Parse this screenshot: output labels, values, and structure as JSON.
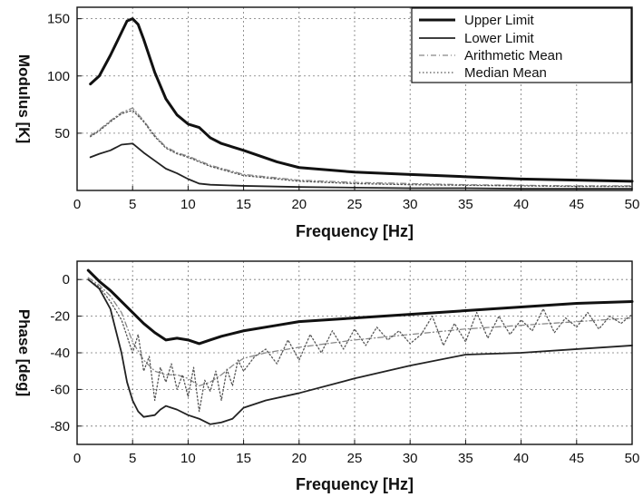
{
  "chart_data": [
    {
      "type": "line",
      "xlabel": "Frequency [Hz]",
      "ylabel": "Modulus [K]",
      "xlim": [
        0,
        50
      ],
      "ylim": [
        0,
        160
      ],
      "xticks": [
        "0",
        "5",
        "10",
        "15",
        "20",
        "25",
        "30",
        "35",
        "40",
        "45",
        "50"
      ],
      "yticks": [
        "50",
        "100",
        "150"
      ],
      "ytick_values": [
        50,
        100,
        150
      ],
      "grid": true,
      "legend_position": "top-right",
      "legend": [
        "Upper Limit",
        "Lower Limit",
        "Arithmetic Mean",
        "Median Mean"
      ],
      "series": [
        {
          "name": "Upper Limit",
          "style": "solid-thick",
          "color": "#111111",
          "x": [
            1.2,
            2,
            3,
            4,
            4.5,
            5,
            5.5,
            6,
            7,
            8,
            9,
            10,
            11,
            12,
            13,
            15,
            18,
            20,
            25,
            30,
            35,
            40,
            45,
            50
          ],
          "y": [
            93,
            100,
            118,
            138,
            148,
            150,
            145,
            132,
            103,
            80,
            66,
            58,
            55,
            46,
            41,
            35,
            25,
            20,
            16,
            14,
            12,
            10,
            9,
            8
          ]
        },
        {
          "name": "Lower Limit",
          "style": "solid",
          "color": "#222222",
          "x": [
            1.2,
            2,
            3,
            4,
            5,
            6,
            7,
            8,
            9,
            10,
            11,
            12,
            15,
            20,
            25,
            30,
            35,
            40,
            45,
            50
          ],
          "y": [
            29,
            32,
            35,
            40,
            41,
            33,
            26,
            19,
            15,
            10,
            6,
            5,
            4,
            3,
            2.5,
            2,
            2,
            1.5,
            1.5,
            1.5
          ]
        },
        {
          "name": "Arithmetic Mean",
          "style": "dash-dot",
          "color": "#888888",
          "x": [
            1.2,
            2,
            3,
            4,
            5,
            6,
            7,
            8,
            9,
            10,
            11,
            12,
            15,
            20,
            25,
            30,
            35,
            40,
            45,
            50
          ],
          "y": [
            48,
            53,
            61,
            68,
            72,
            61,
            48,
            38,
            33,
            30,
            26,
            22,
            14,
            9,
            7,
            6,
            5,
            4.5,
            4,
            4
          ]
        },
        {
          "name": "Median Mean",
          "style": "dotted",
          "color": "#555555",
          "x": [
            1.2,
            2,
            3,
            4,
            5,
            6,
            7,
            8,
            9,
            10,
            11,
            12,
            15,
            20,
            25,
            30,
            35,
            40,
            45,
            50
          ],
          "y": [
            47,
            52,
            60,
            67,
            70,
            60,
            47,
            37,
            32,
            29,
            25,
            21,
            13,
            8,
            6,
            5,
            4.5,
            4,
            3.5,
            3.5
          ]
        }
      ]
    },
    {
      "type": "line",
      "xlabel": "Frequency [Hz]",
      "ylabel": "Phase [deg]",
      "xlim": [
        0,
        50
      ],
      "ylim": [
        -90,
        10
      ],
      "xticks": [
        "0",
        "5",
        "10",
        "15",
        "20",
        "25",
        "30",
        "35",
        "40",
        "45",
        "50"
      ],
      "yticks": [
        "0",
        "-20",
        "-40",
        "-60",
        "-80"
      ],
      "ytick_values": [
        0,
        -20,
        -40,
        -60,
        -80
      ],
      "grid": true,
      "series": [
        {
          "name": "Upper Limit",
          "style": "solid-thick",
          "color": "#111111",
          "x": [
            1,
            2,
            3,
            4,
            5,
            6,
            7,
            8,
            9,
            10,
            11,
            12,
            13,
            15,
            18,
            20,
            25,
            30,
            35,
            40,
            45,
            50
          ],
          "y": [
            5,
            -1,
            -6,
            -12,
            -18,
            -24,
            -29,
            -33,
            -32,
            -33,
            -35,
            -33,
            -31,
            -28,
            -25,
            -23,
            -21,
            -19,
            -17,
            -15,
            -13,
            -12
          ]
        },
        {
          "name": "Lower Limit",
          "style": "solid",
          "color": "#222222",
          "x": [
            1,
            2,
            3,
            4,
            4.5,
            5,
            5.5,
            6,
            7,
            7.5,
            8,
            8.5,
            9,
            10,
            11,
            12,
            13,
            14,
            15,
            17,
            20,
            25,
            30,
            35,
            40,
            45,
            50
          ],
          "y": [
            0,
            -5,
            -16,
            -40,
            -56,
            -66,
            -72,
            -75,
            -74,
            -71,
            -69,
            -70,
            -71,
            -74,
            -76,
            -79,
            -78,
            -76,
            -70,
            -66,
            -62,
            -54,
            -47,
            -41,
            -40,
            -38,
            -36
          ]
        },
        {
          "name": "Arithmetic Mean",
          "style": "dash-dot",
          "color": "#888888",
          "x": [
            1,
            2,
            3,
            4,
            5,
            6,
            7,
            8,
            9,
            10,
            11,
            12,
            13,
            14,
            15,
            17,
            20,
            25,
            30,
            35,
            40,
            45,
            50
          ],
          "y": [
            1,
            -3,
            -9,
            -18,
            -34,
            -44,
            -50,
            -52,
            -52,
            -54,
            -58,
            -56,
            -52,
            -47,
            -43,
            -40,
            -37,
            -33,
            -30,
            -27,
            -25,
            -23,
            -21
          ]
        },
        {
          "name": "Median Mean",
          "style": "dotted-noisy",
          "color": "#555555",
          "x": [
            1,
            2,
            3,
            4,
            5,
            5.5,
            6,
            6.5,
            7,
            7.5,
            8,
            8.5,
            9,
            9.5,
            10,
            10.5,
            11,
            11.5,
            12,
            12.5,
            13,
            13.5,
            14,
            14.5,
            15,
            16,
            17,
            18,
            19,
            20,
            21,
            22,
            23,
            24,
            25,
            26,
            27,
            28,
            29,
            30,
            31,
            32,
            33,
            34,
            35,
            36,
            37,
            38,
            39,
            40,
            41,
            42,
            43,
            44,
            45,
            46,
            47,
            48,
            49,
            50
          ],
          "y": [
            0,
            -4,
            -12,
            -22,
            -40,
            -30,
            -50,
            -42,
            -66,
            -48,
            -56,
            -46,
            -60,
            -52,
            -64,
            -48,
            -72,
            -55,
            -61,
            -50,
            -66,
            -49,
            -58,
            -44,
            -50,
            -42,
            -38,
            -46,
            -33,
            -44,
            -30,
            -40,
            -28,
            -38,
            -27,
            -36,
            -26,
            -33,
            -28,
            -35,
            -30,
            -20,
            -36,
            -24,
            -34,
            -18,
            -32,
            -20,
            -30,
            -22,
            -28,
            -16,
            -29,
            -21,
            -26,
            -18,
            -27,
            -20,
            -24,
            -19
          ]
        }
      ]
    }
  ]
}
